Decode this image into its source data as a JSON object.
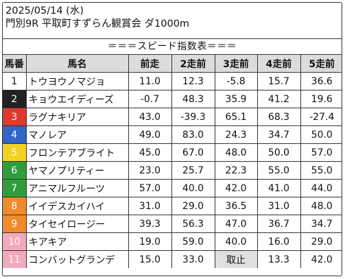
{
  "header": {
    "line1": "2025/05/14 (水)",
    "line2": "門別9R 平取町すずらん観賞会 ダ1000m"
  },
  "table": {
    "title": "＝＝＝スピード指数表＝＝＝",
    "columns": [
      "馬番",
      "馬名",
      "前走",
      "2走前",
      "3走前",
      "4走前",
      "5走前"
    ],
    "rows": [
      {
        "num": "1",
        "bg": "#ffffff",
        "fg": "#111111",
        "name": "トウヨウノマジョ",
        "vals": [
          "11.0",
          "12.3",
          "-5.8",
          "15.7",
          "36.6"
        ]
      },
      {
        "num": "2",
        "bg": "#222222",
        "fg": "#ffffff",
        "name": "キョウエイディーズ",
        "vals": [
          "-0.7",
          "48.3",
          "35.9",
          "41.2",
          "19.6"
        ]
      },
      {
        "num": "3",
        "bg": "#e03a2f",
        "fg": "#ffffff",
        "name": "ラグナキリア",
        "vals": [
          "43.0",
          "-39.3",
          "65.1",
          "68.3",
          "-27.4"
        ]
      },
      {
        "num": "4",
        "bg": "#2f66c8",
        "fg": "#ffffff",
        "name": "マノレア",
        "vals": [
          "49.0",
          "83.0",
          "24.3",
          "34.7",
          "50.0"
        ]
      },
      {
        "num": "5",
        "bg": "#f2d21f",
        "fg": "#ffffff",
        "name": "フロンテアブライト",
        "vals": [
          "45.0",
          "67.0",
          "48.0",
          "50.0",
          "57.0"
        ]
      },
      {
        "num": "6",
        "bg": "#2e9e3c",
        "fg": "#ffffff",
        "name": "ヤマノプリティー",
        "vals": [
          "23.0",
          "25.7",
          "22.3",
          "55.0",
          "55.0"
        ]
      },
      {
        "num": "7",
        "bg": "#2e9e3c",
        "fg": "#ffffff",
        "name": "アニマルフルーツ",
        "vals": [
          "57.0",
          "40.0",
          "42.0",
          "41.0",
          "44.0"
        ]
      },
      {
        "num": "8",
        "bg": "#f08a2a",
        "fg": "#ffffff",
        "name": "イイデスカイハイ",
        "vals": [
          "31.0",
          "29.0",
          "36.5",
          "31.0",
          "48.0"
        ]
      },
      {
        "num": "9",
        "bg": "#f08a2a",
        "fg": "#ffffff",
        "name": "タイセイロージー",
        "vals": [
          "39.3",
          "56.3",
          "47.0",
          "36.7",
          "34.7"
        ]
      },
      {
        "num": "10",
        "bg": "#f2a9bd",
        "fg": "#ffffff",
        "name": "キアキア",
        "vals": [
          "19.0",
          "59.0",
          "40.0",
          "16.0",
          "29.0"
        ]
      },
      {
        "num": "11",
        "bg": "#f2a9bd",
        "fg": "#ffffff",
        "name": "コンバットグランデ",
        "vals": [
          "15.0",
          "33.0",
          "取止",
          "13.3",
          "42.0"
        ]
      }
    ]
  }
}
